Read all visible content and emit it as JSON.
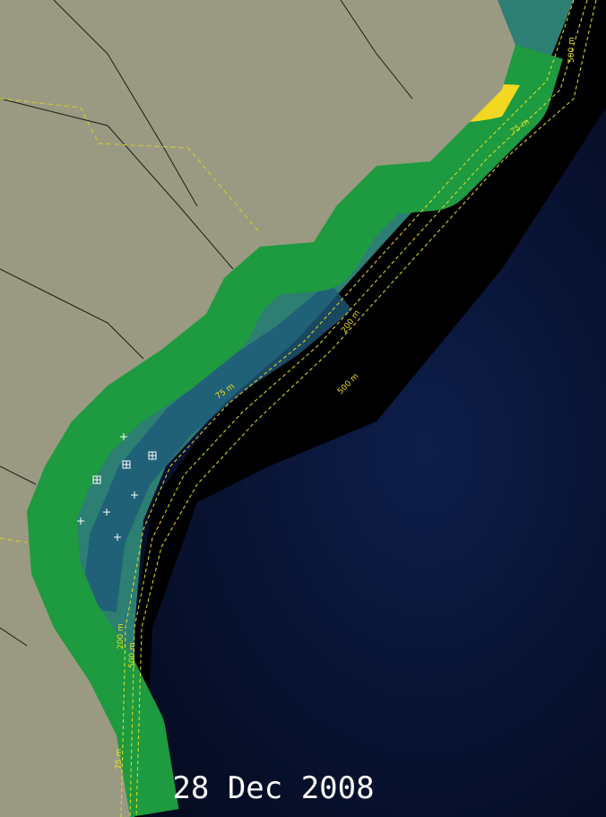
{
  "date": "28 Dec 2008",
  "contour_labels": [
    "75 m",
    "200 m",
    "500 m",
    "75 m",
    "200 m",
    "500 m",
    "75 m",
    "500 m"
  ]
}
